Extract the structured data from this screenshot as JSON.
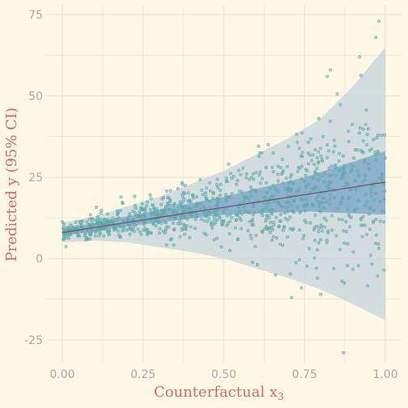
{
  "chart_data": {
    "type": "scatter",
    "title": "",
    "xlabel": "Counterfactual   x",
    "xlabel_subscript": "3",
    "ylabel": "Predicted y (95% CI)",
    "xlim": [
      -0.05,
      1.05
    ],
    "ylim": [
      -32,
      78
    ],
    "x_ticks": [
      0,
      0.25,
      0.5,
      0.75,
      1
    ],
    "x_tick_labels": [
      "0.00",
      "0.25",
      "0.50",
      "0.75",
      "1.00"
    ],
    "y_ticks": [
      -25,
      0,
      25,
      50,
      75
    ],
    "y_tick_labels": [
      "-25",
      "0",
      "25",
      "50",
      "75"
    ],
    "grid": true,
    "colors": {
      "background": "#fdf7e6",
      "grid": "#e9e3cf",
      "prediction_band": "#c9d6dc",
      "confidence_band": "#6f9fc6",
      "fit_line": "#7a4a66",
      "points": "#5fa8a8",
      "labels": "#d06a6a",
      "ticks": "#a8a8a8"
    },
    "fit_line": {
      "x": [
        0,
        1
      ],
      "y": [
        8,
        23.5
      ]
    },
    "confidence_band": {
      "x": [
        0,
        0.25,
        0.5,
        0.75,
        1
      ],
      "lower": [
        7,
        10.5,
        13.5,
        14.5,
        13.5
      ],
      "upper": [
        9,
        14,
        19,
        25,
        33
      ]
    },
    "prediction_band": {
      "x": [
        0,
        0.1,
        0.2,
        0.3,
        0.4,
        0.5,
        0.6,
        0.7,
        0.8,
        0.9,
        1
      ],
      "lower": [
        5,
        5.5,
        5,
        3.5,
        2,
        0,
        -3,
        -6,
        -9.5,
        -14,
        -19
      ],
      "upper": [
        11,
        13,
        16,
        19,
        23,
        27,
        32,
        37,
        43,
        53,
        65
      ]
    },
    "noise_sd": {
      "x": [
        0,
        0.5,
        0.75,
        1
      ],
      "sd": [
        1.2,
        5,
        9,
        13
      ]
    },
    "point_count": 1000,
    "outliers": [
      {
        "x": 0.87,
        "y": -29
      },
      {
        "x": 0.98,
        "y": 73
      },
      {
        "x": 0.97,
        "y": 68
      },
      {
        "x": 0.83,
        "y": 58
      },
      {
        "x": 0.82,
        "y": 56
      },
      {
        "x": 0.71,
        "y": -12
      },
      {
        "x": 0.74,
        "y": -9
      },
      {
        "x": 0.79,
        "y": -6
      },
      {
        "x": 0.8,
        "y": -11
      },
      {
        "x": 0.66,
        "y": -5
      },
      {
        "x": 0.92,
        "y": 62
      }
    ]
  }
}
